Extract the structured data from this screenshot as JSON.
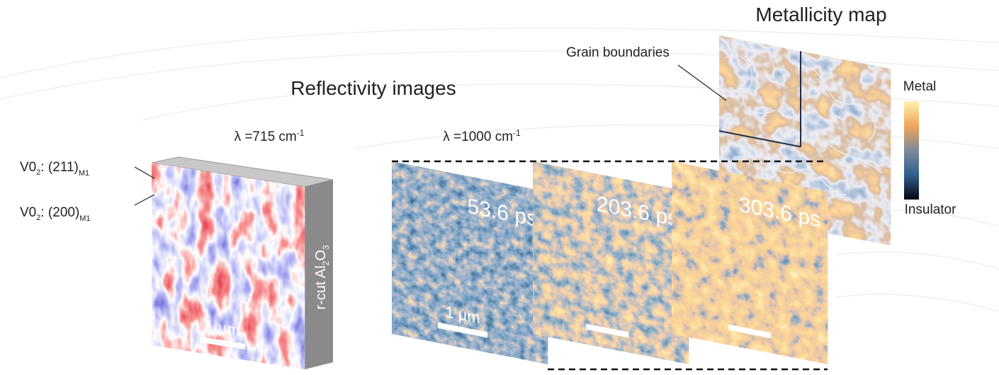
{
  "metallicity": {
    "title": "Metallicity map",
    "grain_label": "Grain boundaries",
    "colorbar": {
      "top": "Metal",
      "bottom": "Insulator"
    }
  },
  "reflectivity": {
    "title": "Reflectivity images",
    "wavelength": {
      "text": "λ =1000 cm",
      "sup": "-1"
    },
    "panels": [
      {
        "time": "53.6 ps",
        "scale": "1 µm"
      },
      {
        "time": "203.6 ps"
      },
      {
        "time": "303.6 ps"
      }
    ]
  },
  "sample": {
    "wavelength": {
      "text": "λ =715 cm",
      "sup": "-1"
    },
    "layers": [
      {
        "a": "V0",
        "sub_a": "2",
        "b": ": (211)",
        "sub_b": "M1"
      },
      {
        "a": "V0",
        "sub_a": "2",
        "b": ": (200)",
        "sub_b": "M1"
      }
    ],
    "substrate": {
      "a": "r-cut Al",
      "sub_a": "2",
      "b": "O",
      "sub_b": "3"
    },
    "scale": "1 µm"
  }
}
